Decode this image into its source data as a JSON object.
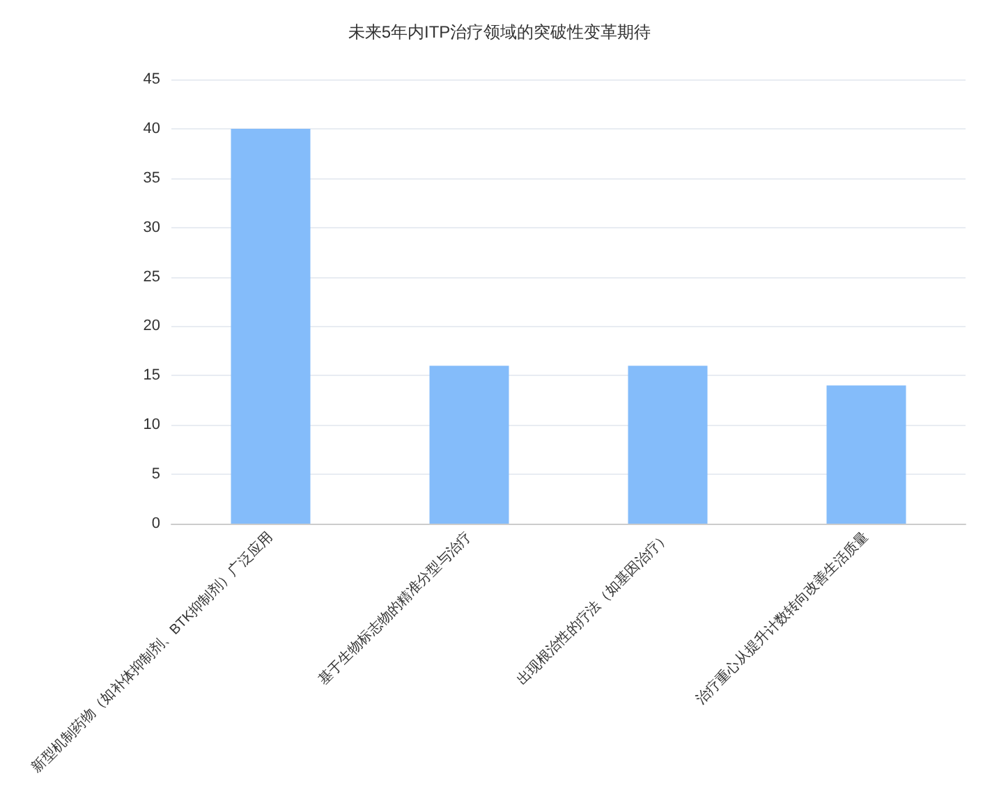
{
  "chart_data": {
    "type": "bar",
    "title": "未来5年内ITP治疗领域的突破性变革期待",
    "categories": [
      "新型机制药物（如补体抑制剂、BTK抑制剂）广泛应用",
      "基于生物标志物的精准分型与治疗",
      "出现根治性的疗法（如基因治疗）",
      "治疗重心从提升计数转向改善生活质量"
    ],
    "values": [
      40,
      16,
      16,
      14
    ],
    "color": "#84bcfa",
    "ylim": [
      0,
      45
    ],
    "yticks": [
      0,
      5,
      10,
      15,
      20,
      25,
      30,
      35,
      40,
      45
    ],
    "grid": "y"
  }
}
